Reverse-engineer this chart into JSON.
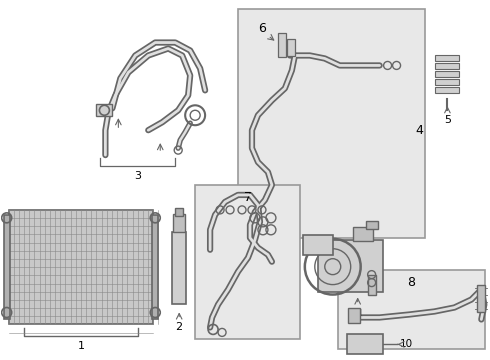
{
  "bg_color": "#ffffff",
  "part_color": "#666666",
  "box_edge": "#999999",
  "box_fill": "#e8e8e8",
  "label_color": "#000000",
  "fig_w": 4.9,
  "fig_h": 3.6,
  "dpi": 100
}
